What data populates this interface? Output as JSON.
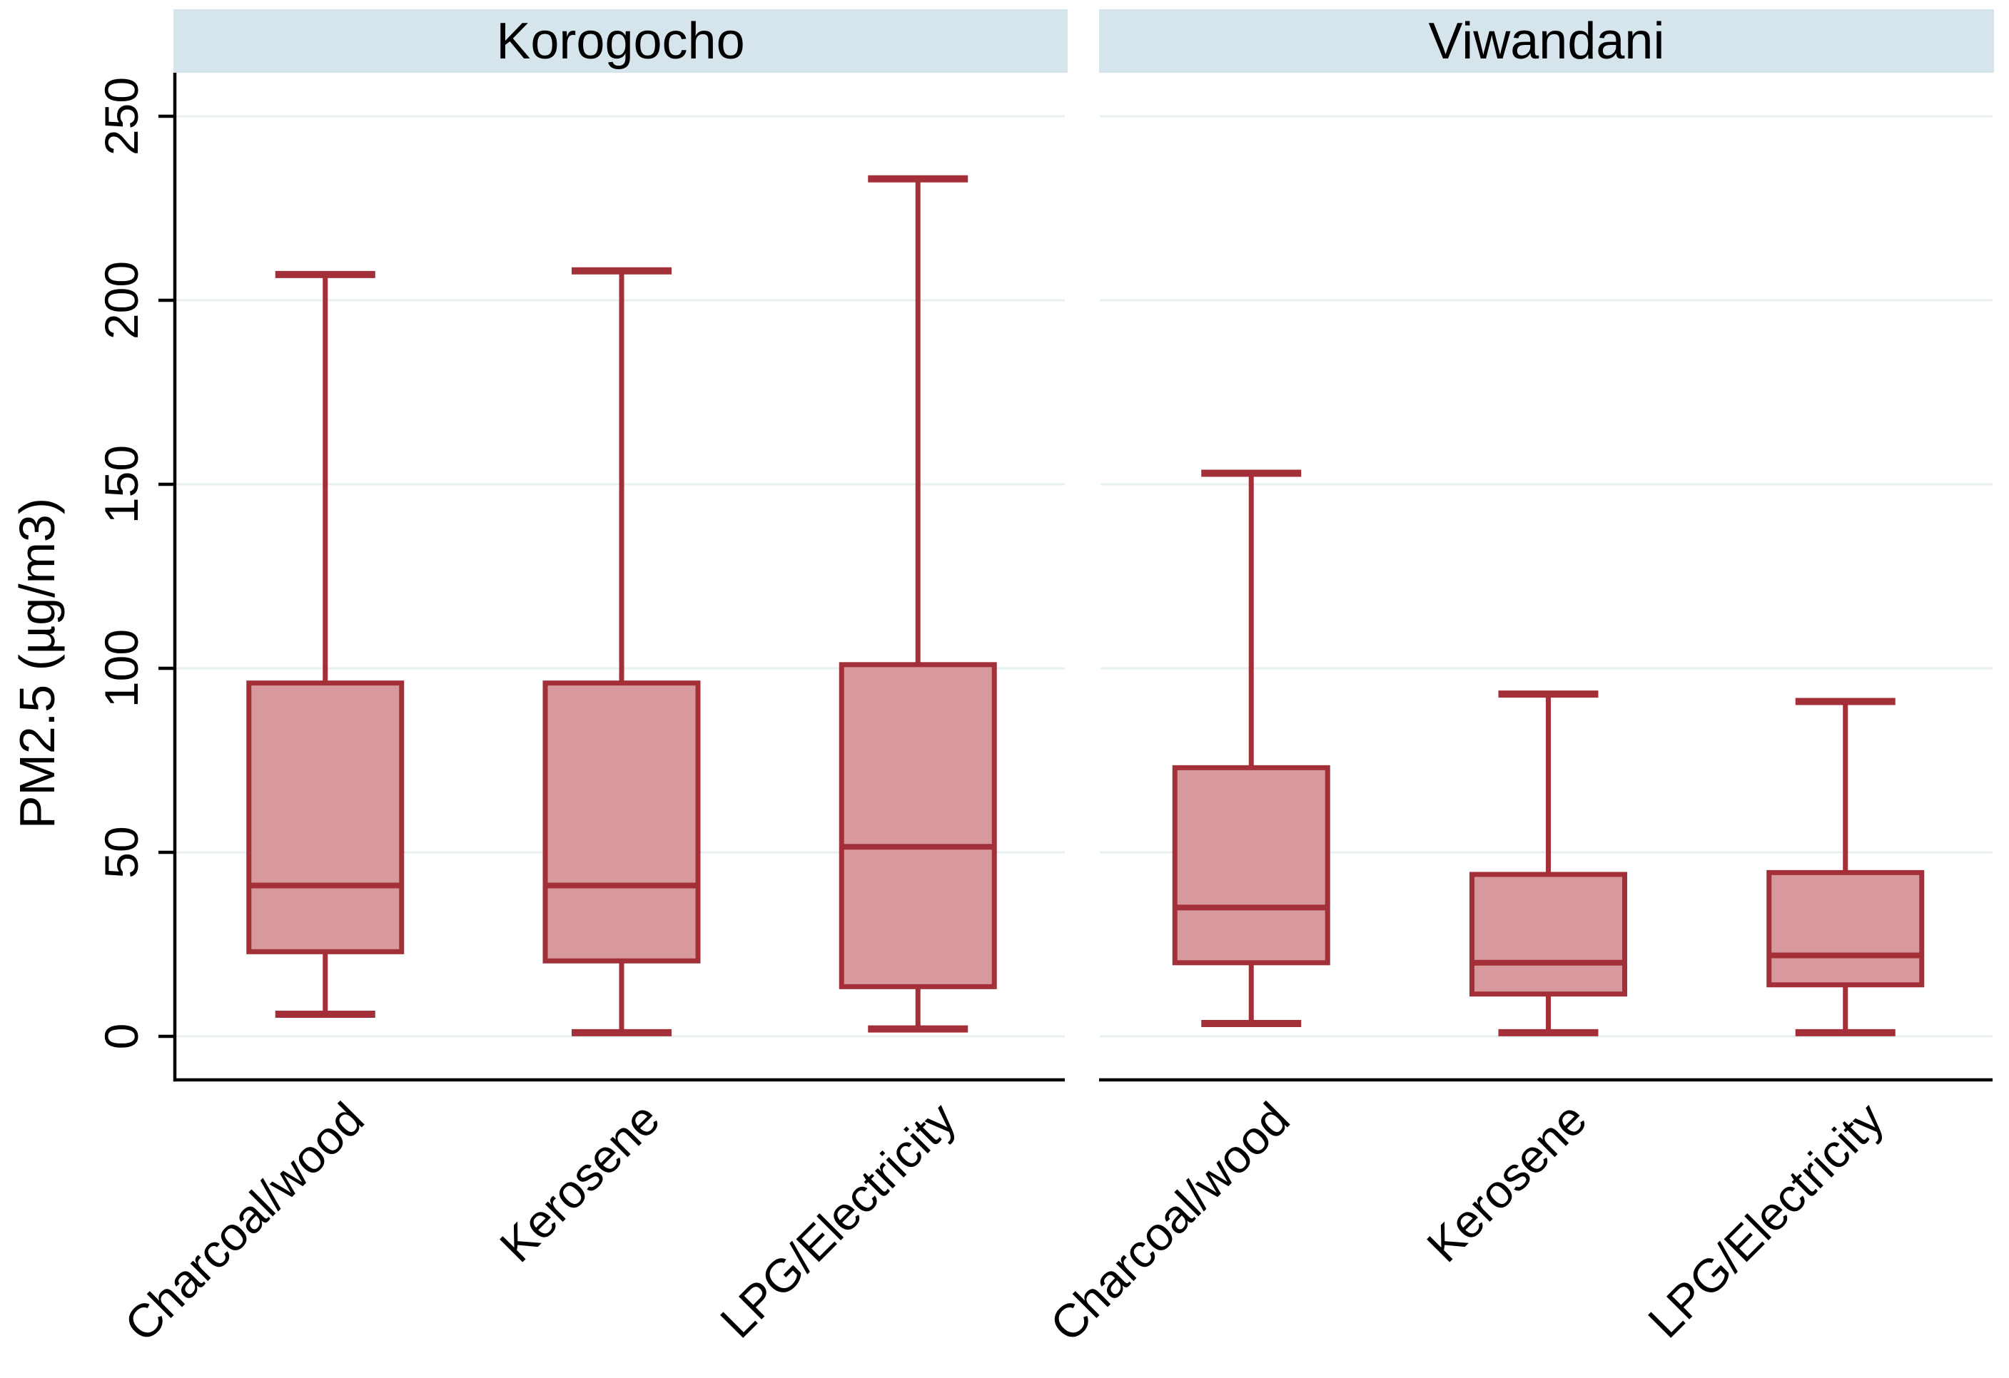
{
  "figure": {
    "colors": {
      "background": "#ffffff",
      "panel_header_bg": "#d6e4ec",
      "grid": "#e6f0f0",
      "box_fill": "#d8999e",
      "box_stroke": "#a32f38",
      "axis": "#000000",
      "text": "#000000"
    }
  },
  "chart_data": {
    "type": "boxplot",
    "title": "",
    "ylabel": "PM2.5 (µg/m3)",
    "xlabel": "",
    "yticks": [
      0,
      50,
      100,
      150,
      200,
      250
    ],
    "ylim": [
      0,
      262
    ],
    "grid": true,
    "legend_position": "none",
    "panels": [
      {
        "title": "Korogocho",
        "categories": [
          "Charcoal/wood",
          "Kerosene",
          "LPG/Electricity"
        ],
        "boxes": [
          {
            "category": "Charcoal/wood",
            "whisker_low": 6,
            "q1": 23,
            "median": 41,
            "q3": 96,
            "whisker_high": 207
          },
          {
            "category": "Kerosene",
            "whisker_low": 1,
            "q1": 20.5,
            "median": 41,
            "q3": 96,
            "whisker_high": 208
          },
          {
            "category": "LPG/Electricity",
            "whisker_low": 2,
            "q1": 13.5,
            "median": 51.5,
            "q3": 101,
            "whisker_high": 233
          }
        ]
      },
      {
        "title": "Viwandani",
        "categories": [
          "Charcoal/wood",
          "Kerosene",
          "LPG/Electricity"
        ],
        "boxes": [
          {
            "category": "Charcoal/wood",
            "whisker_low": 3.5,
            "q1": 20,
            "median": 35,
            "q3": 73,
            "whisker_high": 153
          },
          {
            "category": "Kerosene",
            "whisker_low": 1,
            "q1": 11.5,
            "median": 20,
            "q3": 44,
            "whisker_high": 93
          },
          {
            "category": "LPG/Electricity",
            "whisker_low": 1,
            "q1": 14,
            "median": 22,
            "q3": 44.5,
            "whisker_high": 91
          }
        ]
      }
    ]
  }
}
